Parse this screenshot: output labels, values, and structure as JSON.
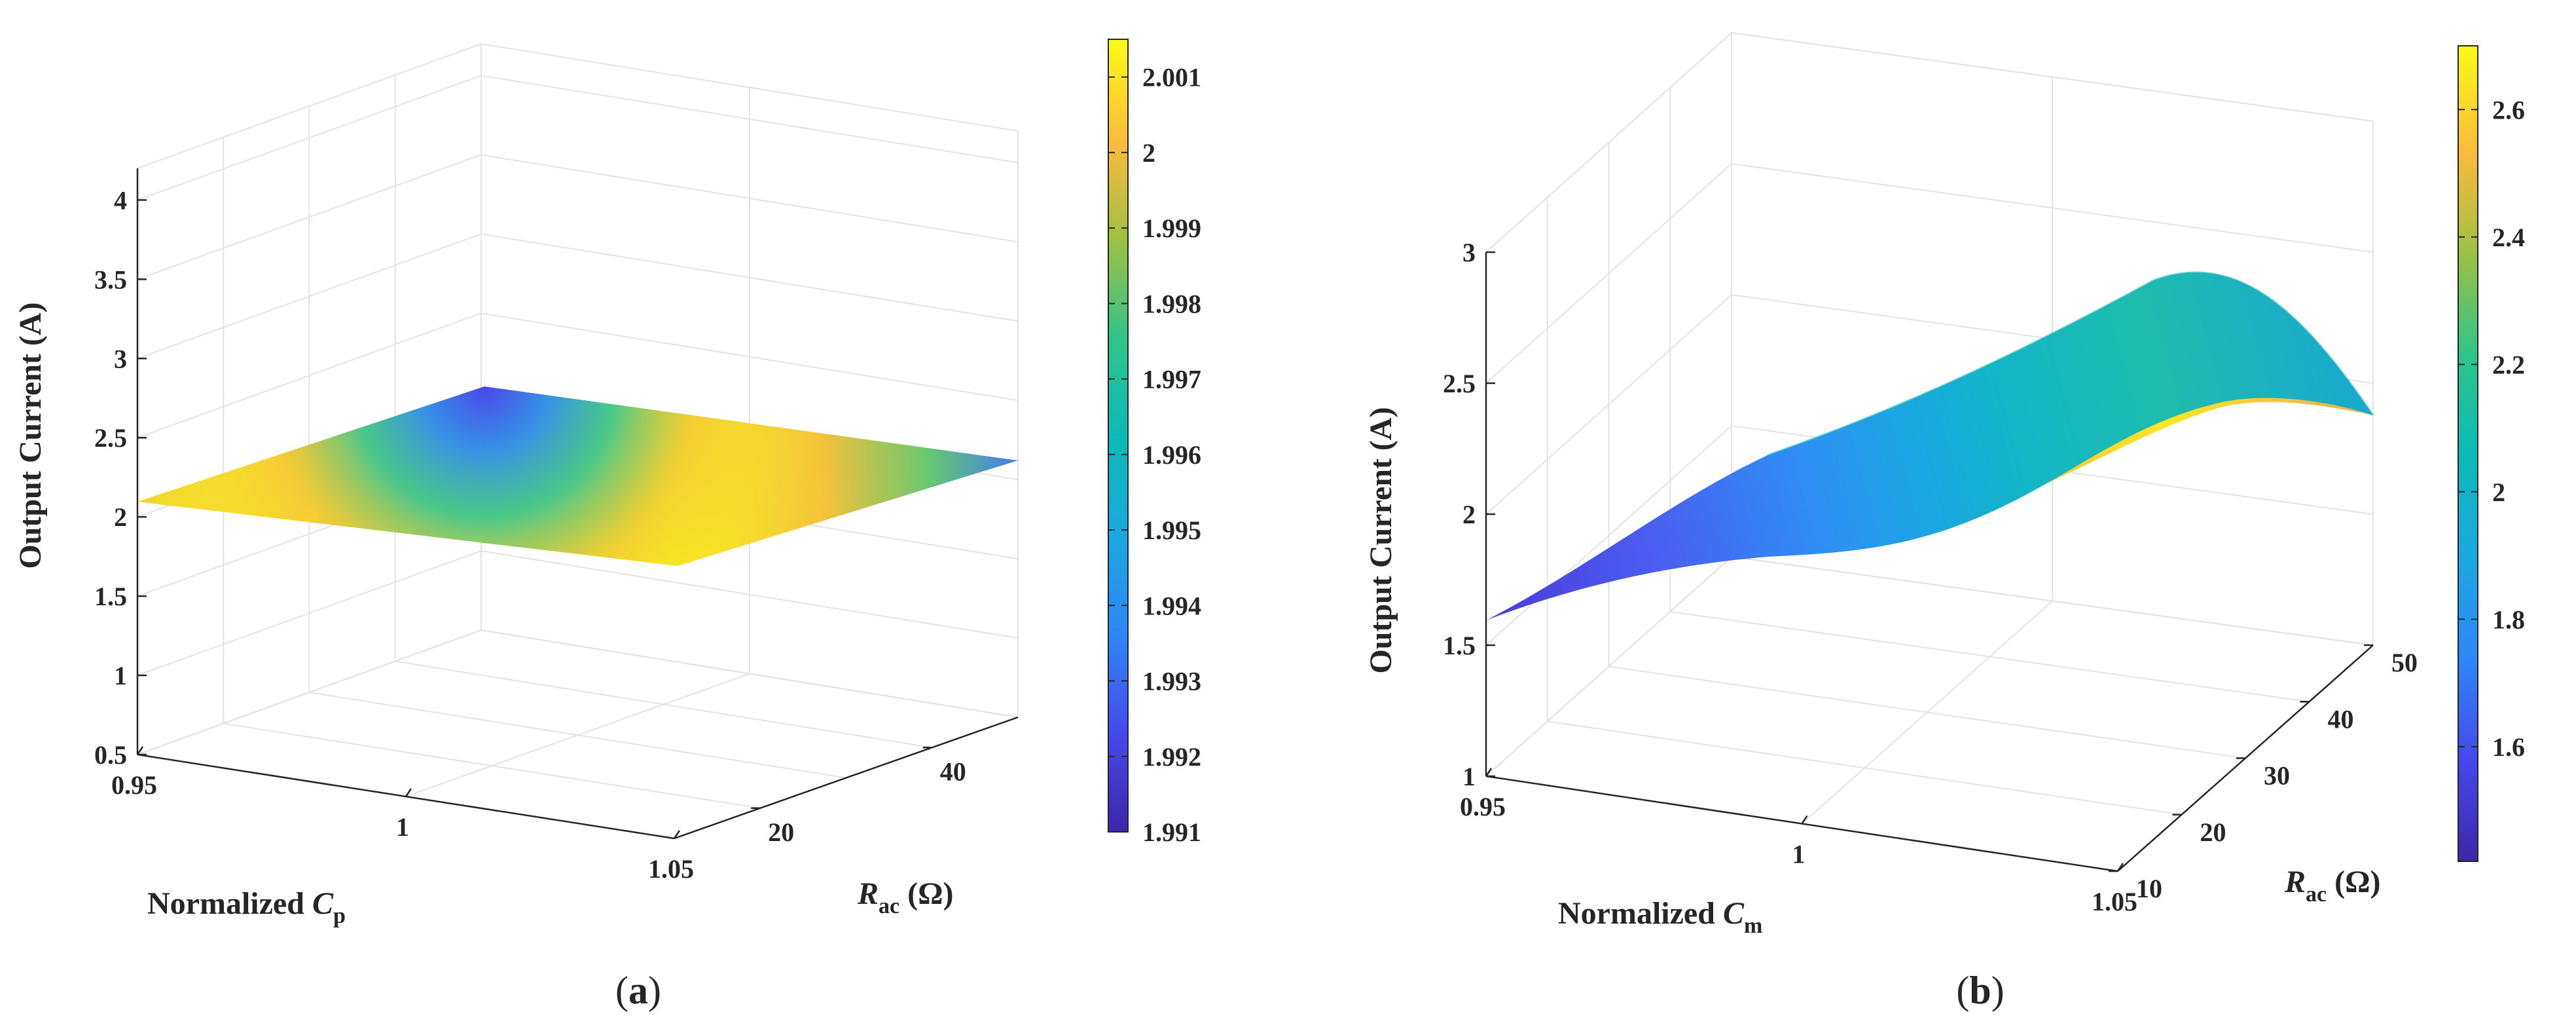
{
  "chart_data": [
    {
      "type": "surface",
      "panel": "(a)",
      "panel_letter": "a",
      "zlabel": "Output Current (A)",
      "xlabel_main": "Normalized ",
      "xlabel_var": "C",
      "xlabel_sub": "p",
      "ylabel_var": "R",
      "ylabel_sub": "ac",
      "ylabel_unit": " (Ω)",
      "x_ticks": [
        "0.95",
        "1",
        "1.05"
      ],
      "y_ticks": [
        "20",
        "40"
      ],
      "z_ticks": [
        "0.5",
        "1",
        "1.5",
        "2",
        "2.5",
        "3",
        "3.5",
        "4"
      ],
      "xlim": [
        0.95,
        1.05
      ],
      "ylim": [
        10,
        50
      ],
      "zlim": [
        0.5,
        4.2
      ],
      "grid": true,
      "surface": "nearly flat plane at ~2.0 A",
      "z_range": [
        1.991,
        2.0015
      ],
      "corner_values": {
        "x0_95_y10": 2.0,
        "x1_05_y10": 2.0,
        "x0_95_y50": 1.993,
        "x1_05_y50": 1.994
      },
      "colorbar": {
        "colormap": "parula",
        "min": 1.991,
        "max": 2.0015,
        "ticks": [
          "1.991",
          "1.992",
          "1.993",
          "1.994",
          "1.995",
          "1.996",
          "1.997",
          "1.998",
          "1.999",
          "2",
          "2.001"
        ]
      }
    },
    {
      "type": "surface",
      "panel": "(b)",
      "panel_letter": "b",
      "zlabel": "Output Current (A)",
      "xlabel_main": "Normalized ",
      "xlabel_var": "C",
      "xlabel_sub": "m",
      "ylabel_var": "R",
      "ylabel_sub": "ac",
      "ylabel_unit": " (Ω)",
      "x_ticks": [
        "0.95",
        "1",
        "1.05"
      ],
      "y_ticks": [
        "10",
        "20",
        "30",
        "40",
        "50"
      ],
      "z_ticks": [
        "1",
        "1.5",
        "2",
        "2.5",
        "3"
      ],
      "xlim": [
        0.95,
        1.05
      ],
      "ylim": [
        10,
        50
      ],
      "zlim": [
        1,
        3
      ],
      "grid": true,
      "surface": "curved sheet, current rises with normalized Cm then falls",
      "z_range": [
        1.42,
        2.7
      ],
      "profile_along_x": [
        {
          "x": 0.95,
          "z": 1.58
        },
        {
          "x": 0.97,
          "z": 1.85
        },
        {
          "x": 0.99,
          "z": 2.15
        },
        {
          "x": 1.01,
          "z": 2.45
        },
        {
          "x": 1.03,
          "z": 2.62
        },
        {
          "x": 1.05,
          "z": 2.5
        }
      ],
      "colorbar": {
        "colormap": "parula",
        "min": 1.42,
        "max": 2.7,
        "ticks": [
          "1.6",
          "1.8",
          "2",
          "2.2",
          "2.4",
          "2.6"
        ]
      }
    }
  ]
}
